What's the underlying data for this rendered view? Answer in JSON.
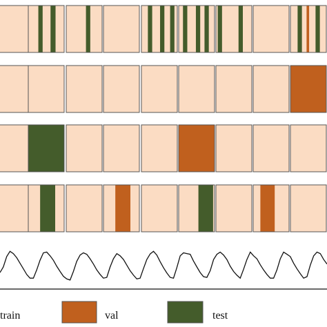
{
  "colors": {
    "train": "#fbdcc3",
    "val": "#c0601e",
    "test": "#445c2b",
    "border": "#555555",
    "line": "#111111"
  },
  "rows": [
    {
      "name": "row-random",
      "folds": [
        [
          [
            "val",
            0.0,
            0.1
          ]
        ],
        [
          [
            "test",
            0.28,
            0.4
          ],
          [
            "test",
            0.62,
            0.76
          ]
        ],
        [
          [
            "test",
            0.55,
            0.67
          ]
        ],
        [],
        [
          [
            "test",
            0.18,
            0.3
          ],
          [
            "test",
            0.52,
            0.64
          ],
          [
            "test",
            0.8,
            0.92
          ]
        ],
        [
          [
            "test",
            0.12,
            0.24
          ],
          [
            "test",
            0.48,
            0.6
          ],
          [
            "test",
            0.72,
            0.84
          ]
        ],
        [
          [
            "test",
            0.05,
            0.17
          ],
          [
            "test",
            0.63,
            0.75
          ]
        ],
        [],
        [
          [
            "test",
            0.2,
            0.32
          ],
          [
            "val",
            0.45,
            0.52
          ],
          [
            "test",
            0.7,
            0.82
          ]
        ]
      ]
    },
    {
      "name": "row-val-last",
      "folds": [
        [],
        [],
        [],
        [],
        [],
        [],
        [],
        [],
        [
          [
            "val",
            0,
            1
          ]
        ]
      ]
    },
    {
      "name": "row-block",
      "folds": [
        [],
        [
          [
            "test",
            0,
            1
          ]
        ],
        [],
        [],
        [],
        [
          [
            "val",
            0,
            1
          ]
        ],
        [],
        [],
        []
      ]
    },
    {
      "name": "row-interleaved",
      "folds": [
        [],
        [
          [
            "test",
            0.33,
            0.75
          ]
        ],
        [],
        [
          [
            "val",
            0.33,
            0.75
          ]
        ],
        [],
        [
          [
            "test",
            0.55,
            0.96
          ]
        ],
        [],
        [
          [
            "val",
            0.2,
            0.6
          ]
        ],
        []
      ]
    }
  ],
  "timeseries": {
    "values": [
      0.35,
      0.5,
      0.78,
      0.92,
      0.86,
      0.75,
      0.6,
      0.45,
      0.3,
      0.2,
      0.2,
      0.42,
      0.68,
      0.88,
      0.9,
      0.8,
      0.68,
      0.52,
      0.38,
      0.25,
      0.18,
      0.15,
      0.38,
      0.65,
      0.82,
      0.88,
      0.84,
      0.72,
      0.58,
      0.42,
      0.3,
      0.2,
      0.22,
      0.5,
      0.72,
      0.86,
      0.8,
      0.7,
      0.55,
      0.4,
      0.28,
      0.18,
      0.2,
      0.46,
      0.7,
      0.85,
      0.92,
      0.82,
      0.64,
      0.48,
      0.34,
      0.22,
      0.2,
      0.48,
      0.8,
      0.88,
      0.86,
      0.84,
      0.66,
      0.5,
      0.35,
      0.24,
      0.22,
      0.4,
      0.7,
      0.84,
      0.9,
      0.82,
      0.7,
      0.52,
      0.38,
      0.28,
      0.2,
      0.44,
      0.7,
      0.9,
      0.8,
      0.72,
      0.56,
      0.42,
      0.3,
      0.2,
      0.2,
      0.42,
      0.72,
      0.9,
      0.84,
      0.78,
      0.6,
      0.45,
      0.32,
      0.2,
      0.24,
      0.55,
      0.8,
      0.9,
      0.86,
      0.7,
      0.58
    ]
  },
  "legend": {
    "train": "train",
    "val": "val",
    "test": "test"
  }
}
